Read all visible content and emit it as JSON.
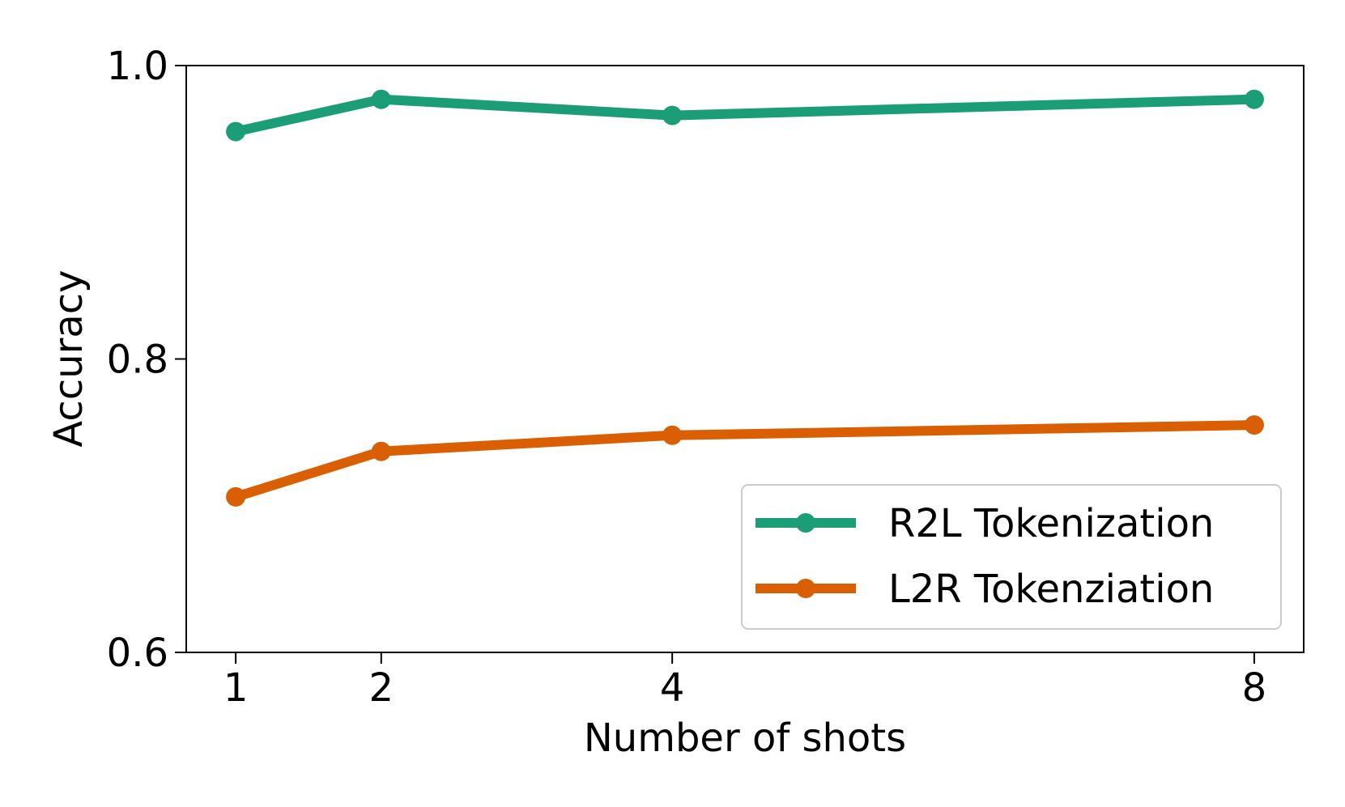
{
  "chart_data": {
    "type": "line",
    "title": "",
    "xlabel": "Number of shots",
    "ylabel": "Accuracy",
    "x": [
      1,
      2,
      4,
      8
    ],
    "xticks": [
      "1",
      "2",
      "4",
      "8"
    ],
    "xlim": [
      0.66,
      8.34
    ],
    "ylim": [
      0.6,
      1.0
    ],
    "yticks": [
      "0.6",
      "0.8",
      "1.0"
    ],
    "grid": false,
    "legend_position": "lower-right",
    "series": [
      {
        "name": "R2L Tokenization",
        "color": "#1b9e77",
        "values": [
          0.955,
          0.977,
          0.966,
          0.977
        ]
      },
      {
        "name": "L2R Tokenziation",
        "color": "#d95f02",
        "values": [
          0.706,
          0.737,
          0.748,
          0.755
        ]
      }
    ]
  }
}
